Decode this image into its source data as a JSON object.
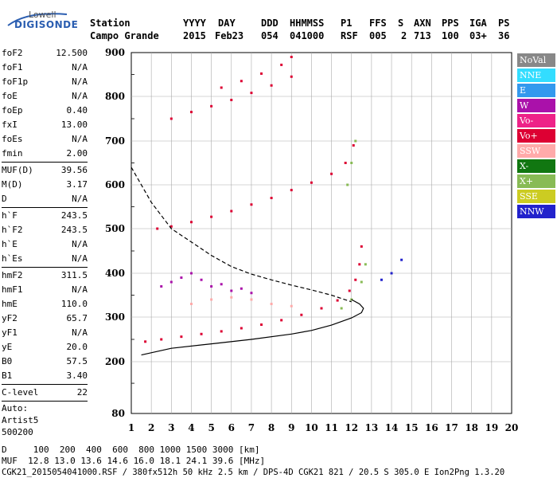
{
  "brand": {
    "top": "Lowell",
    "main": "DIGISONDE"
  },
  "header": {
    "row1": [
      "Station",
      "YYYY",
      "DAY",
      "DDD",
      "HHMMSS",
      "P1",
      "FFS",
      "S",
      "AXN",
      "PPS",
      "IGA",
      "PS"
    ],
    "row2": [
      "Campo Grande",
      "2015",
      "Feb23",
      "054",
      "041000",
      "RSF",
      "005",
      "2",
      "713",
      "100",
      "03+",
      "36"
    ]
  },
  "params": {
    "group1": [
      {
        "label": "foF2",
        "value": "12.500"
      },
      {
        "label": "foF1",
        "value": "N/A"
      },
      {
        "label": "foF1p",
        "value": "N/A"
      },
      {
        "label": "foE",
        "value": "N/A"
      },
      {
        "label": "foEp",
        "value": "0.40"
      },
      {
        "label": "fxI",
        "value": "13.00"
      },
      {
        "label": "foEs",
        "value": "N/A"
      },
      {
        "label": "fmin",
        "value": "2.00"
      }
    ],
    "group2": [
      {
        "label": "MUF(D)",
        "value": "39.56"
      },
      {
        "label": "M(D)",
        "value": "3.17"
      },
      {
        "label": "D",
        "value": "N/A"
      }
    ],
    "group3": [
      {
        "label": "h`F",
        "value": "243.5"
      },
      {
        "label": "h`F2",
        "value": "243.5"
      },
      {
        "label": "h`E",
        "value": "N/A"
      },
      {
        "label": "h`Es",
        "value": "N/A"
      }
    ],
    "group4": [
      {
        "label": "hmF2",
        "value": "311.5"
      },
      {
        "label": "hmF1",
        "value": "N/A"
      },
      {
        "label": "hmE",
        "value": "110.0"
      },
      {
        "label": "yF2",
        "value": "65.7"
      },
      {
        "label": "yF1",
        "value": "N/A"
      },
      {
        "label": "yE",
        "value": "20.0"
      },
      {
        "label": "B0",
        "value": "57.5"
      },
      {
        "label": "B1",
        "value": "3.40"
      }
    ],
    "group5": [
      {
        "label": "C-level",
        "value": "22"
      }
    ],
    "auto": [
      "Auto:",
      "Artist5",
      "500200"
    ]
  },
  "footer": {
    "d_line": "D     100  200  400  600  800 1000 1500 3000 [km]",
    "muf_line": "MUF  12.8 13.0 13.6 14.6 16.0 18.1 24.1 39.6 [MHz]",
    "file_line": "CGK21_2015054041000.RSF / 380fx512h 50 kHz 2.5 km / DPS-4D CGK21 821 / 20.5 S 305.0 E Ion2Png 1.3.20"
  },
  "legend": [
    {
      "label": "NoVal",
      "color": "#888888"
    },
    {
      "label": "NNE",
      "color": "#33ddff"
    },
    {
      "label": "E",
      "color": "#3399ee"
    },
    {
      "label": "W",
      "color": "#aa11aa"
    },
    {
      "label": "Vo-",
      "color": "#ee2288"
    },
    {
      "label": "Vo+",
      "color": "#dd0033"
    },
    {
      "label": "SSW",
      "color": "#ffaaaa"
    },
    {
      "label": "X-",
      "color": "#117711"
    },
    {
      "label": "X+",
      "color": "#88bb55"
    },
    {
      "label": "SSE",
      "color": "#cccc22"
    },
    {
      "label": "NNW",
      "color": "#2222cc"
    }
  ],
  "chart_data": {
    "type": "scatter",
    "xlim": [
      1,
      20
    ],
    "ylim": [
      80,
      900
    ],
    "x_ticks": [
      "1",
      "2",
      "3",
      "4",
      "5",
      "6",
      "7",
      "8",
      "9",
      "10",
      "11",
      "12",
      "13",
      "14",
      "15",
      "16",
      "17",
      "18",
      "19",
      "20"
    ],
    "y_ticks": [
      "80",
      "200",
      "300",
      "400",
      "500",
      "600",
      "700",
      "800",
      "900"
    ],
    "grid": true,
    "y_scale": "nonlinear",
    "series": [
      {
        "name": "Vo+",
        "color": "#dd0033",
        "points": [
          [
            1.7,
            245
          ],
          [
            2.5,
            250
          ],
          [
            3.5,
            256
          ],
          [
            4.5,
            262
          ],
          [
            5.5,
            268
          ],
          [
            6.5,
            275
          ],
          [
            7.5,
            283
          ],
          [
            8.5,
            293
          ],
          [
            9.5,
            305
          ],
          [
            10.5,
            320
          ],
          [
            11.3,
            338
          ],
          [
            11.9,
            360
          ],
          [
            12.2,
            385
          ],
          [
            12.4,
            420
          ],
          [
            12.5,
            460
          ]
        ]
      },
      {
        "name": "Vo+",
        "color": "#dd0033",
        "points": [
          [
            2.3,
            500
          ],
          [
            3,
            505
          ],
          [
            4,
            515
          ],
          [
            5,
            527
          ],
          [
            6,
            540
          ],
          [
            7,
            555
          ],
          [
            8,
            570
          ],
          [
            9,
            588
          ],
          [
            10,
            605
          ],
          [
            11,
            625
          ],
          [
            11.7,
            650
          ],
          [
            12.1,
            690
          ]
        ]
      },
      {
        "name": "Vo+",
        "color": "#dd0033",
        "points": [
          [
            3,
            750
          ],
          [
            4,
            765
          ],
          [
            5,
            778
          ],
          [
            6,
            792
          ],
          [
            7,
            808
          ],
          [
            8,
            825
          ],
          [
            9,
            845
          ]
        ]
      },
      {
        "name": "Vo+",
        "color": "#dd0033",
        "points": [
          [
            5.5,
            820
          ],
          [
            6.5,
            835
          ],
          [
            7.5,
            852
          ],
          [
            8.5,
            872
          ],
          [
            9,
            890
          ]
        ]
      },
      {
        "name": "W",
        "color": "#aa11aa",
        "points": [
          [
            2.5,
            370
          ],
          [
            3,
            380
          ],
          [
            3.5,
            390
          ],
          [
            4,
            400
          ],
          [
            4.5,
            385
          ],
          [
            5,
            370
          ],
          [
            5.5,
            375
          ],
          [
            6,
            360
          ],
          [
            6.5,
            365
          ],
          [
            7,
            355
          ]
        ]
      },
      {
        "name": "SSW",
        "color": "#ffaaaa",
        "points": [
          [
            4,
            330
          ],
          [
            5,
            340
          ],
          [
            6,
            345
          ],
          [
            7,
            340
          ],
          [
            8,
            330
          ],
          [
            9,
            325
          ]
        ]
      },
      {
        "name": "X+",
        "color": "#88bb55",
        "points": [
          [
            11.5,
            320
          ],
          [
            12,
            340
          ],
          [
            12.5,
            380
          ],
          [
            12.7,
            420
          ]
        ]
      },
      {
        "name": "NNW",
        "color": "#2222cc",
        "points": [
          [
            13.5,
            385
          ],
          [
            14,
            400
          ],
          [
            14.5,
            430
          ]
        ]
      },
      {
        "name": "X+",
        "color": "#88bb55",
        "points": [
          [
            11.8,
            600
          ],
          [
            12,
            650
          ],
          [
            12.2,
            700
          ]
        ]
      }
    ],
    "curves": [
      {
        "style": "solid",
        "points": [
          [
            1.5,
            215
          ],
          [
            3,
            230
          ],
          [
            5,
            240
          ],
          [
            7,
            250
          ],
          [
            9,
            262
          ],
          [
            10,
            270
          ],
          [
            11,
            282
          ],
          [
            12,
            298
          ],
          [
            12.5,
            310
          ],
          [
            12.6,
            320
          ],
          [
            12.4,
            330
          ],
          [
            12,
            340
          ]
        ]
      },
      {
        "style": "dashed",
        "points": [
          [
            1,
            640
          ],
          [
            2,
            560
          ],
          [
            3,
            500
          ],
          [
            4,
            470
          ],
          [
            5,
            440
          ],
          [
            6,
            415
          ],
          [
            7,
            398
          ],
          [
            8,
            385
          ],
          [
            9,
            373
          ],
          [
            10,
            362
          ],
          [
            11,
            350
          ],
          [
            12,
            335
          ]
        ]
      }
    ]
  }
}
